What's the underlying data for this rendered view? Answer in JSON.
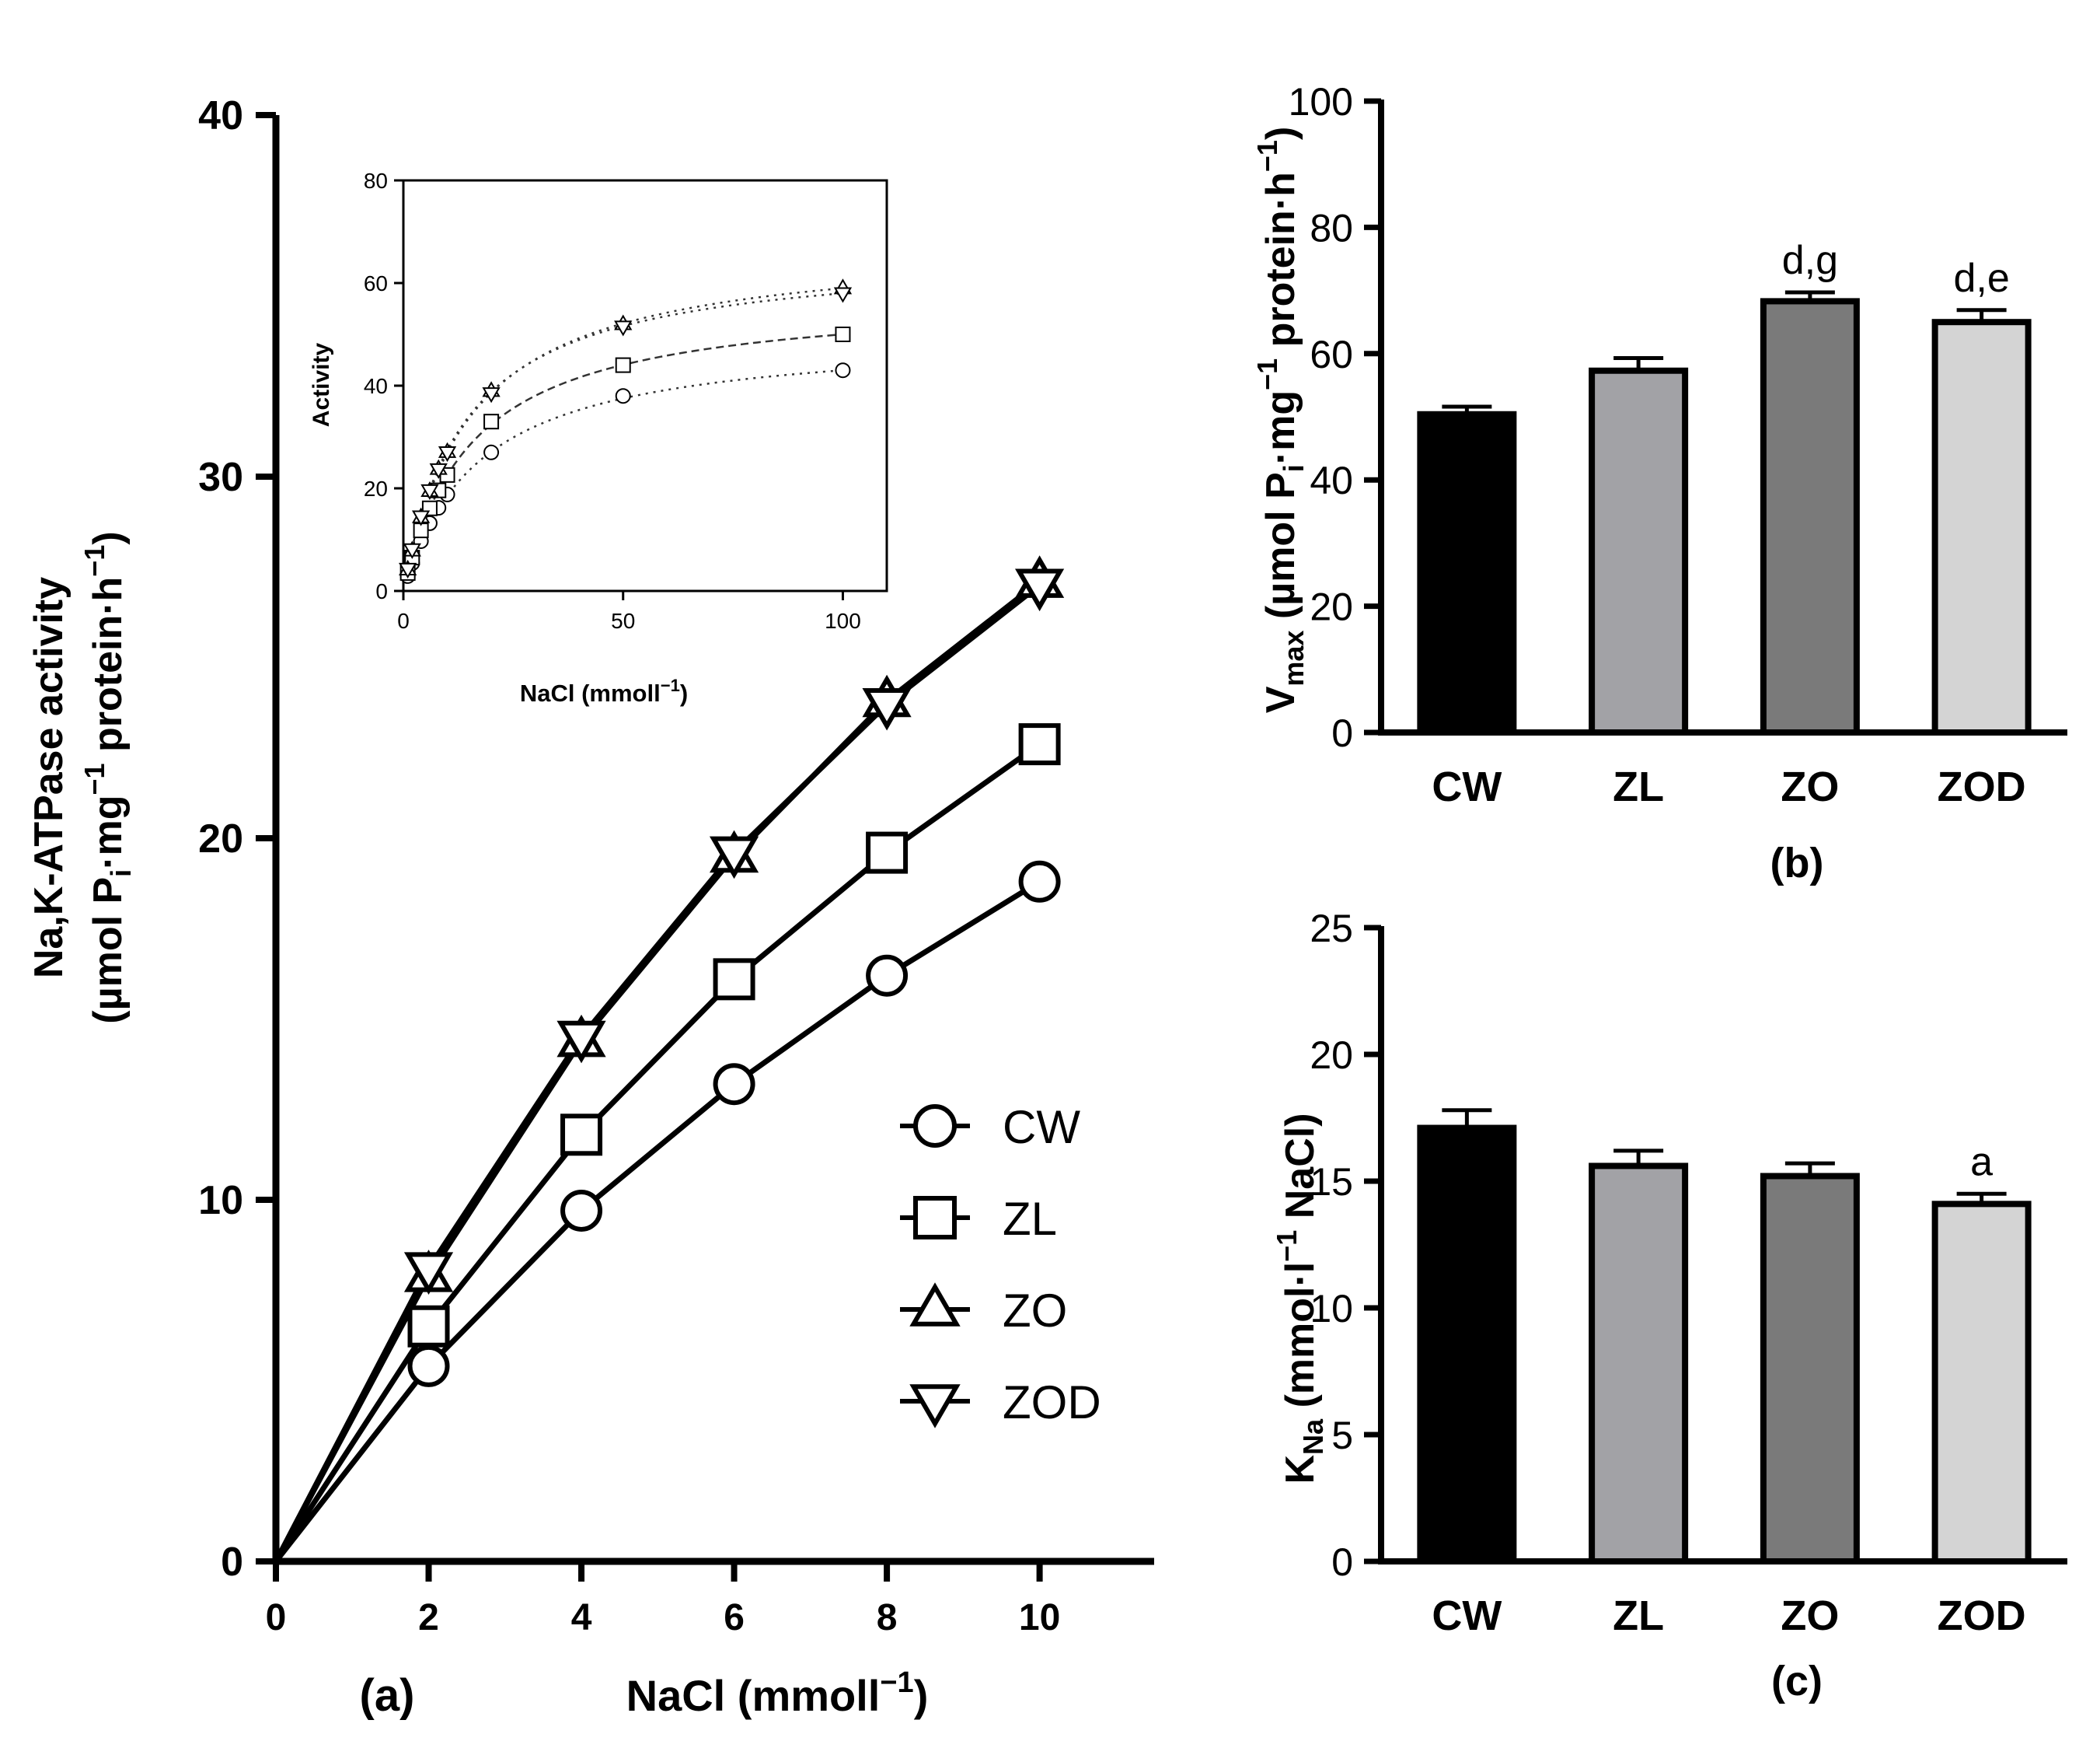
{
  "chart_data": [
    {
      "id": "a",
      "type": "line",
      "panel_label": "(a)",
      "title": "",
      "xlabel_main": "NaCl (mmoll",
      "xlabel_sup": "−1",
      "xlabel_end": ")",
      "ylabel_line1": "Na,K-ATPase activity",
      "ylabel_line2": {
        "p1": "(µmol P",
        "sub": "i",
        "p2": "·mg",
        "sup1": "−1",
        "p3": " protein·h",
        "sup2": "−1",
        "p4": ")"
      },
      "xlim": [
        0,
        11.5
      ],
      "ylim": [
        0,
        40
      ],
      "xticks": [
        0,
        2,
        4,
        6,
        8,
        10
      ],
      "yticks": [
        0,
        10,
        20,
        30,
        40
      ],
      "xtick_labels": [
        "0",
        "2",
        "4",
        "6",
        "8",
        "10"
      ],
      "ytick_labels": [
        "0",
        "10",
        "20",
        "30",
        "40"
      ],
      "x": [
        0,
        2,
        4,
        6,
        8,
        10
      ],
      "series": [
        {
          "name": "CW",
          "marker": "circle",
          "values": [
            0,
            5.4,
            9.7,
            13.2,
            16.2,
            18.8
          ]
        },
        {
          "name": "ZL",
          "marker": "square",
          "values": [
            0,
            6.5,
            11.8,
            16.1,
            19.6,
            22.6
          ]
        },
        {
          "name": "ZO",
          "marker": "triangle-up",
          "values": [
            0,
            7.9,
            14.4,
            19.5,
            23.8,
            27.1
          ]
        },
        {
          "name": "ZOD",
          "marker": "triangle-down",
          "values": [
            0,
            8.1,
            14.5,
            19.6,
            23.7,
            27.0
          ]
        }
      ],
      "legend_position": "lower-right"
    },
    {
      "id": "a-inset",
      "type": "scatter",
      "title": "",
      "xlabel_main": "NaCl (mmoll",
      "xlabel_sup": "−1",
      "xlabel_end": ")",
      "ylabel": "Activity",
      "xlim": [
        0,
        110
      ],
      "ylim": [
        0,
        80
      ],
      "xticks": [
        0,
        50,
        100
      ],
      "yticks": [
        0,
        20,
        40,
        60,
        80
      ],
      "xtick_labels": [
        "0",
        "50",
        "100"
      ],
      "ytick_labels": [
        "0",
        "20",
        "40",
        "60",
        "80"
      ],
      "x": [
        1,
        2,
        4,
        6,
        8,
        10,
        20,
        50,
        100
      ],
      "series": [
        {
          "name": "CW",
          "marker": "circle",
          "values": [
            2.9,
            5.4,
            9.7,
            13.2,
            16.2,
            18.8,
            27.0,
            38.0,
            43.0
          ]
        },
        {
          "name": "ZL",
          "marker": "square",
          "values": [
            3.5,
            6.5,
            11.8,
            16.1,
            19.6,
            22.6,
            33.0,
            44.0,
            50.0
          ]
        },
        {
          "name": "ZO",
          "marker": "triangle-up",
          "values": [
            4.2,
            7.9,
            14.4,
            19.5,
            23.8,
            27.1,
            39.0,
            52.0,
            59.0
          ]
        },
        {
          "name": "ZOD",
          "marker": "triangle-down",
          "values": [
            4.3,
            8.1,
            14.5,
            19.6,
            23.7,
            27.0,
            38.5,
            51.5,
            58.0
          ]
        }
      ],
      "fits": [
        {
          "name": "CW",
          "vmax": 50.4,
          "k": 17.1
        },
        {
          "name": "ZL",
          "vmax": 57.3,
          "k": 15.6
        },
        {
          "name": "ZO",
          "vmax": 68.3,
          "k": 15.2
        },
        {
          "name": "ZOD",
          "vmax": 65.0,
          "k": 14.1
        }
      ]
    },
    {
      "id": "b",
      "type": "bar",
      "panel_label": "(b)",
      "title": "",
      "ylabel": {
        "v": "V",
        "sub": "max",
        "p1": " (µmol P",
        "sub2": "i",
        "p2": "·mg",
        "sup1": "−1",
        "p3": " protein·h",
        "sup2": "−1",
        "p4": ")"
      },
      "categories": [
        "CW",
        "ZL",
        "ZO",
        "ZOD"
      ],
      "values": [
        50.4,
        57.3,
        68.3,
        65.0
      ],
      "errors": [
        1.2,
        2.0,
        1.4,
        1.9
      ],
      "annotations": [
        "",
        "",
        "d,g",
        "d,e"
      ],
      "colors": [
        "#000000",
        "#a2a2a6",
        "#7a7a7a",
        "#d4d4d4"
      ],
      "ylim": [
        0,
        100
      ],
      "yticks": [
        0,
        20,
        40,
        60,
        80,
        100
      ],
      "ytick_labels": [
        "0",
        "20",
        "40",
        "60",
        "80",
        "100"
      ]
    },
    {
      "id": "c",
      "type": "bar",
      "panel_label": "(c)",
      "title": "",
      "ylabel": {
        "k": "K",
        "sub": "Na",
        "p1": " (mmol·l",
        "sup": "−1",
        "p2": " NaCl)"
      },
      "categories": [
        "CW",
        "ZL",
        "ZO",
        "ZOD"
      ],
      "values": [
        17.1,
        15.6,
        15.2,
        14.1
      ],
      "errors": [
        0.7,
        0.6,
        0.5,
        0.4
      ],
      "annotations": [
        "",
        "",
        "",
        "a"
      ],
      "colors": [
        "#000000",
        "#a2a2a6",
        "#7a7a7a",
        "#d4d4d4"
      ],
      "ylim": [
        0,
        25
      ],
      "yticks": [
        0,
        5,
        10,
        15,
        20,
        25
      ],
      "ytick_labels": [
        "0",
        "5",
        "10",
        "15",
        "20",
        "25"
      ]
    }
  ]
}
